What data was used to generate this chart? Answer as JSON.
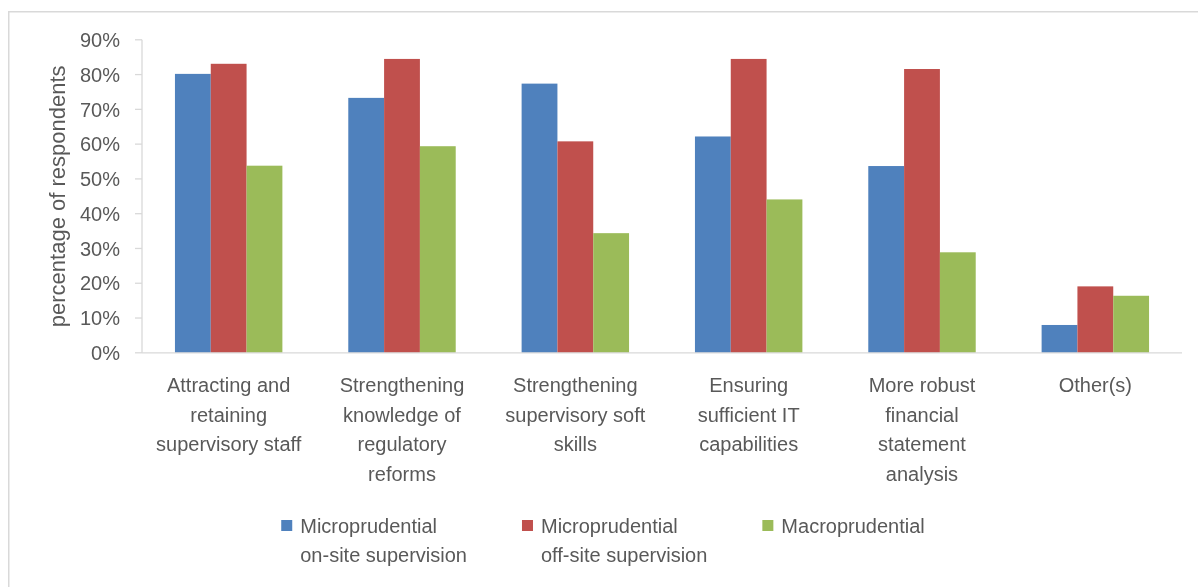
{
  "chart_data": {
    "type": "bar",
    "ylabel": "percentage of respondents",
    "categories": [
      "Attracting and retaining supervisory staff",
      "Strengthening knowledge of regulatory reforms",
      "Strengthening supervisory soft skills",
      "Ensuring sufficient IT capabilities",
      "More robust financial statement analysis",
      "Other(s)"
    ],
    "series": [
      {
        "name": "Microprudential on-site supervision",
        "color": "#4f81bd",
        "values": [
          80.2,
          73.3,
          77.4,
          62.2,
          53.7,
          8.0
        ]
      },
      {
        "name": "Microprudential off-site supervision",
        "color": "#c0504d",
        "values": [
          83.1,
          84.5,
          60.8,
          84.5,
          81.6,
          19.1
        ]
      },
      {
        "name": "Macroprudential",
        "color": "#9bbb59",
        "values": [
          53.8,
          59.4,
          34.4,
          44.1,
          28.9,
          16.4
        ]
      }
    ],
    "ylim": [
      0,
      90
    ],
    "yticks": [
      {
        "value": 0,
        "label": "0%"
      },
      {
        "value": 10,
        "label": "10%"
      },
      {
        "value": 20,
        "label": "20%"
      },
      {
        "value": 30,
        "label": "30%"
      },
      {
        "value": 40,
        "label": "40%"
      },
      {
        "value": 50,
        "label": "50%"
      },
      {
        "value": 60,
        "label": "60%"
      },
      {
        "value": 70,
        "label": "70%"
      },
      {
        "value": 80,
        "label": "80%"
      },
      {
        "value": 90,
        "label": "90%"
      }
    ],
    "legend": "bottom"
  }
}
